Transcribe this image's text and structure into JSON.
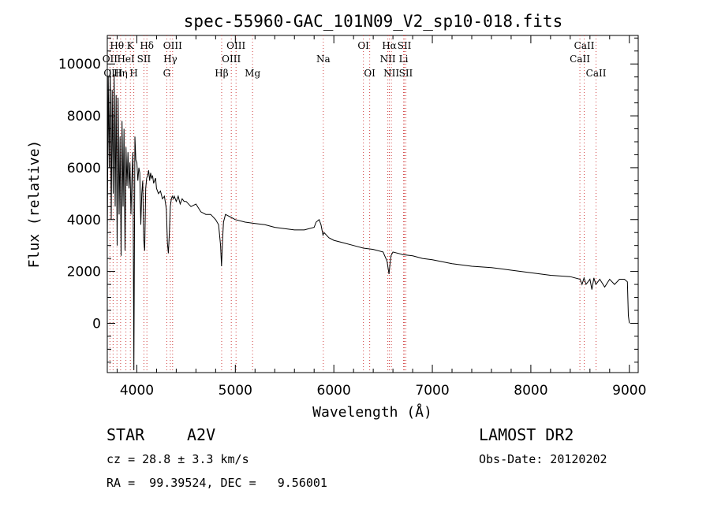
{
  "chart_data": {
    "type": "line",
    "title": "spec-55960-GAC_101N09_V2_sp10-018.fits",
    "xlabel": "Wavelength (Å)",
    "ylabel": "Flux (relative)",
    "xlim": [
      3700,
      9090
    ],
    "ylim": [
      -1900,
      11100
    ],
    "grid": false,
    "x_ticks": [
      4000,
      5000,
      6000,
      7000,
      8000,
      9000
    ],
    "y_ticks": [
      0,
      2000,
      4000,
      6000,
      8000,
      10000
    ],
    "x_tick_labels": [
      "4000",
      "5000",
      "6000",
      "7000",
      "8000",
      "9000"
    ],
    "y_tick_labels": [
      "0",
      "2000",
      "4000",
      "6000",
      "8000",
      "10000"
    ],
    "line_color": "#000000",
    "marker_color": "#d04040",
    "series": [
      {
        "x": [
          3700,
          3710,
          3720,
          3730,
          3740,
          3750,
          3760,
          3770,
          3780,
          3790,
          3800,
          3810,
          3820,
          3830,
          3840,
          3850,
          3860,
          3870,
          3880,
          3890,
          3900,
          3910,
          3920,
          3930,
          3940,
          3950,
          3960,
          3970,
          3980,
          3990,
          4000,
          4010,
          4020,
          4030,
          4040,
          4050,
          4060,
          4070,
          4080,
          4090,
          4100,
          4110,
          4120,
          4130,
          4140,
          4150,
          4160,
          4170,
          4180,
          4190,
          4200,
          4220,
          4240,
          4260,
          4280,
          4300,
          4310,
          4320,
          4330,
          4340,
          4350,
          4360,
          4370,
          4380,
          4400,
          4420,
          4440,
          4460,
          4480,
          4500,
          4550,
          4600,
          4650,
          4700,
          4750,
          4800,
          4830,
          4850,
          4860,
          4870,
          4880,
          4900,
          4950,
          5000,
          5100,
          5200,
          5300,
          5400,
          5500,
          5600,
          5700,
          5800,
          5820,
          5850,
          5870,
          5890,
          5900,
          5950,
          6000,
          6100,
          6200,
          6300,
          6400,
          6500,
          6540,
          6560,
          6570,
          6580,
          6600,
          6700,
          6800,
          6900,
          7000,
          7200,
          7400,
          7600,
          7800,
          8000,
          8200,
          8400,
          8500,
          8520,
          8540,
          8560,
          8580,
          8600,
          8620,
          8640,
          8660,
          8680,
          8700,
          8750,
          8800,
          8850,
          8900,
          8950,
          8980,
          8990,
          9000
        ],
        "y": [
          3000,
          9500,
          6000,
          9800,
          4000,
          9000,
          5000,
          9600,
          4500,
          8800,
          3000,
          8700,
          4200,
          7200,
          2600,
          7800,
          4500,
          7500,
          2800,
          6800,
          5300,
          6600,
          5200,
          6200,
          4200,
          5600,
          6600,
          -1800,
          7200,
          6300,
          6200,
          5500,
          6000,
          5800,
          3800,
          5000,
          5500,
          3200,
          2800,
          5200,
          5600,
          5700,
          5900,
          5500,
          5800,
          5600,
          5700,
          5400,
          5500,
          5600,
          5200,
          5000,
          5100,
          4800,
          4900,
          4400,
          3100,
          2700,
          3500,
          4500,
          4800,
          4900,
          4800,
          4900,
          4700,
          4900,
          4600,
          4800,
          4700,
          4700,
          4500,
          4600,
          4300,
          4200,
          4200,
          4000,
          3800,
          3000,
          2200,
          3200,
          3900,
          4200,
          4100,
          4000,
          3900,
          3850,
          3800,
          3700,
          3650,
          3600,
          3600,
          3700,
          3900,
          4000,
          3800,
          3400,
          3500,
          3300,
          3200,
          3100,
          3000,
          2900,
          2850,
          2750,
          2400,
          1900,
          2300,
          2600,
          2750,
          2650,
          2600,
          2500,
          2450,
          2300,
          2200,
          2150,
          2050,
          1950,
          1850,
          1800,
          1700,
          1500,
          1750,
          1500,
          1600,
          1700,
          1300,
          1750,
          1500,
          1600,
          1700,
          1400,
          1700,
          1500,
          1700,
          1700,
          1600,
          300,
          0
        ]
      }
    ],
    "line_labels": [
      {
        "text": "Hθ",
        "x": 3798,
        "row": 1
      },
      {
        "text": "K",
        "x": 3934,
        "row": 1
      },
      {
        "text": "Hδ",
        "x": 4102,
        "row": 1
      },
      {
        "text": "OIII",
        "x": 4363,
        "row": 1
      },
      {
        "text": "OIII",
        "x": 5007,
        "row": 1
      },
      {
        "text": "OI",
        "x": 6300,
        "row": 1
      },
      {
        "text": "Hα",
        "x": 6563,
        "row": 1
      },
      {
        "text": "SII",
        "x": 6716,
        "row": 1
      },
      {
        "text": "CaII",
        "x": 8542,
        "row": 1
      },
      {
        "text": "OII",
        "x": 3727,
        "row": 2
      },
      {
        "text": "HeI",
        "x": 3889,
        "row": 2
      },
      {
        "text": "SII",
        "x": 4072,
        "row": 2
      },
      {
        "text": "Hγ",
        "x": 4340,
        "row": 2
      },
      {
        "text": "OIII",
        "x": 4959,
        "row": 2
      },
      {
        "text": "Na",
        "x": 5893,
        "row": 2
      },
      {
        "text": "NII",
        "x": 6548,
        "row": 2
      },
      {
        "text": "Li",
        "x": 6708,
        "row": 2
      },
      {
        "text": "CaII",
        "x": 8498,
        "row": 2
      },
      {
        "text": "OIII",
        "x": 3759,
        "row": 3
      },
      {
        "text": "Hη",
        "x": 3835,
        "row": 3
      },
      {
        "text": "H",
        "x": 3969,
        "row": 3
      },
      {
        "text": "G",
        "x": 4304,
        "row": 3
      },
      {
        "text": "Hβ",
        "x": 4861,
        "row": 3
      },
      {
        "text": "Mg",
        "x": 5175,
        "row": 3
      },
      {
        "text": "OI",
        "x": 6364,
        "row": 3
      },
      {
        "text": "NII",
        "x": 6584,
        "row": 3
      },
      {
        "text": "SII",
        "x": 6731,
        "row": 3
      },
      {
        "text": "CaII",
        "x": 8662,
        "row": 3
      }
    ]
  },
  "info": {
    "object_class": "STAR",
    "subclass": "A2V",
    "cz": "cz = 28.8 ± 3.3 km/s",
    "coords": "RA =  99.39524, DEC =   9.56001",
    "survey": "LAMOST DR2",
    "obs_date": "Obs-Date: 20120202"
  }
}
